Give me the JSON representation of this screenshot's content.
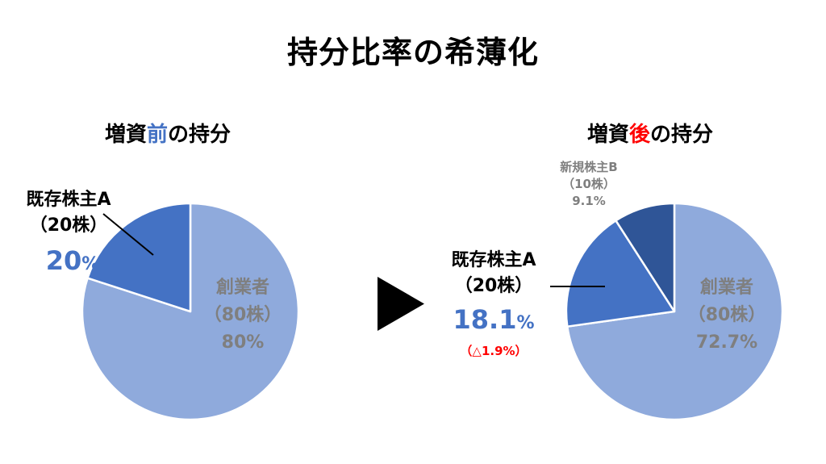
{
  "title": "持分比率の希薄化",
  "colors": {
    "founder": "#8FAADC",
    "holder_a": "#4472C4",
    "holder_b": "#2F5597",
    "label_gray": "#7F7F7F",
    "accent_blue": "#4472C4",
    "accent_red": "#FF0000",
    "arrow": "#000000"
  },
  "before": {
    "subtitle_pre": "増資",
    "subtitle_hl": "前",
    "subtitle_post": "の持分",
    "founder": {
      "name": "創業者",
      "shares": "（80株）",
      "pct": "80%"
    },
    "holder_a": {
      "name": "既存株主A",
      "shares": "（20株）",
      "pct_num": "20",
      "pct_unit": "%"
    }
  },
  "after": {
    "subtitle_pre": "増資",
    "subtitle_hl": "後",
    "subtitle_post": "の持分",
    "founder": {
      "name": "創業者",
      "shares": "（80株）",
      "pct": "72.7%"
    },
    "holder_a": {
      "name": "既存株主A",
      "shares": "（20株）",
      "pct_num": "18.1",
      "pct_unit": "%",
      "change": "（△1.9%）"
    },
    "holder_b": {
      "name": "新規株主B",
      "shares": "（10株）",
      "pct": "9.1%"
    }
  },
  "arrow_icon": "play-triangle-icon",
  "chart_data": [
    {
      "type": "pie",
      "title": "増資前の持分",
      "categories": [
        "創業者",
        "既存株主A"
      ],
      "values": [
        80,
        20
      ],
      "colors": [
        "#8FAADC",
        "#4472C4"
      ]
    },
    {
      "type": "pie",
      "title": "増資後の持分",
      "categories": [
        "創業者",
        "既存株主A",
        "新規株主B"
      ],
      "values": [
        72.7,
        18.1,
        9.1
      ],
      "colors": [
        "#8FAADC",
        "#4472C4",
        "#2F5597"
      ]
    }
  ]
}
